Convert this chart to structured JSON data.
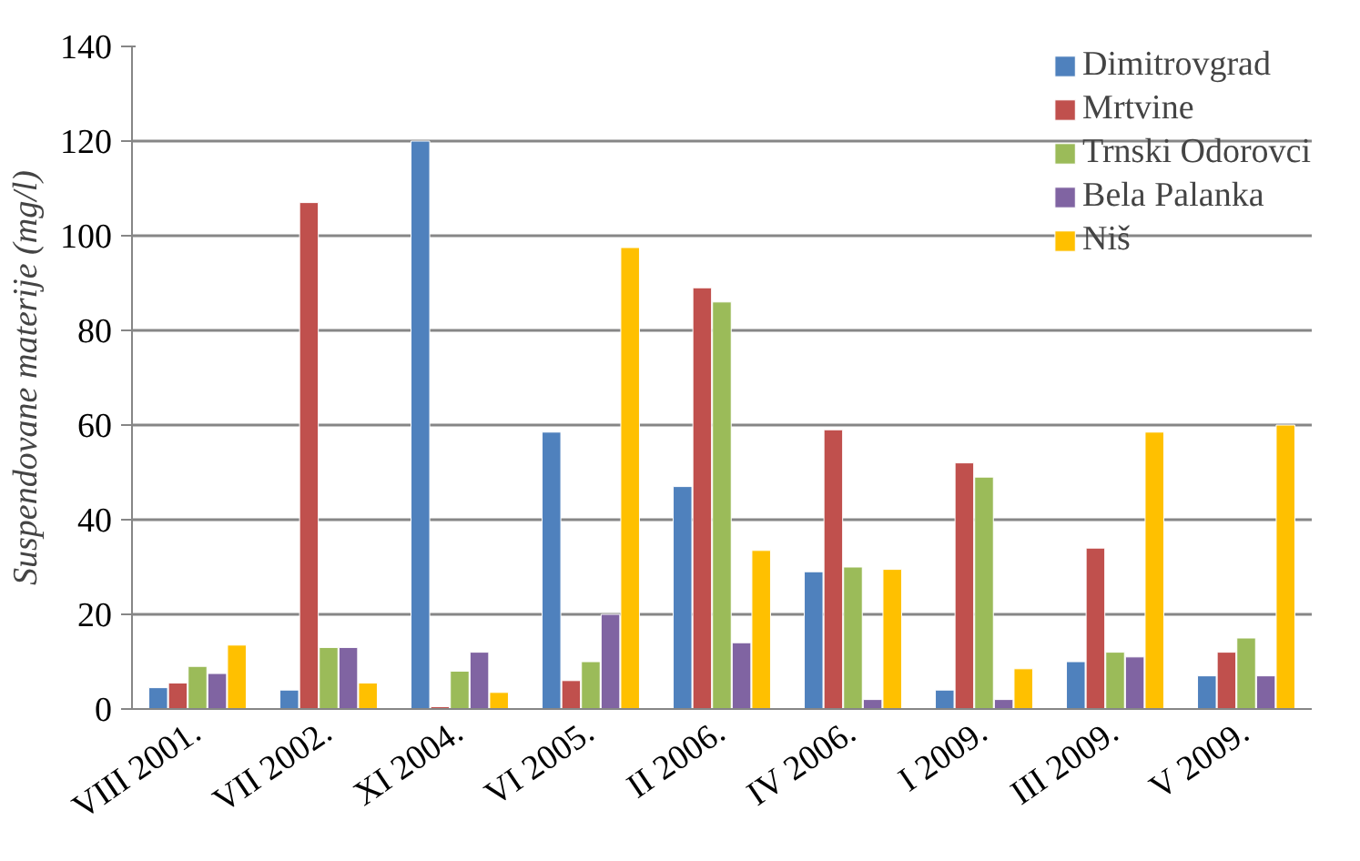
{
  "chart_data": {
    "type": "bar",
    "ylabel": "Suspendovane materije (mg/l)",
    "categories": [
      "VIII 2001.",
      "VII 2002.",
      "XI 2004.",
      "VI 2005.",
      "II 2006.",
      "IV 2006.",
      "I 2009.",
      "III 2009.",
      "V 2009."
    ],
    "series": [
      {
        "name": "Dimitrovgrad",
        "color": "#4f81bd",
        "values": [
          4.5,
          4,
          120,
          58.5,
          47,
          29,
          4,
          10,
          7
        ]
      },
      {
        "name": "Mrtvine",
        "color": "#c0504d",
        "values": [
          5.5,
          107,
          0.5,
          6,
          89,
          59,
          52,
          34,
          12
        ]
      },
      {
        "name": "Trnski Odorovci",
        "color": "#9bbb59",
        "values": [
          9,
          13,
          8,
          10,
          86,
          30,
          49,
          12,
          15
        ]
      },
      {
        "name": "Bela Palanka",
        "color": "#8064a2",
        "values": [
          7.5,
          13,
          12,
          20,
          14,
          2,
          2,
          11,
          7
        ]
      },
      {
        "name": "Niš",
        "color": "#ffc000",
        "values": [
          13.5,
          5.5,
          3.5,
          97.5,
          33.5,
          29.5,
          8.5,
          58.5,
          60
        ]
      }
    ],
    "ylim": [
      0,
      140
    ],
    "yticks": [
      0,
      20,
      40,
      60,
      80,
      100,
      120,
      140
    ],
    "grid": "y",
    "legend": "top right"
  }
}
